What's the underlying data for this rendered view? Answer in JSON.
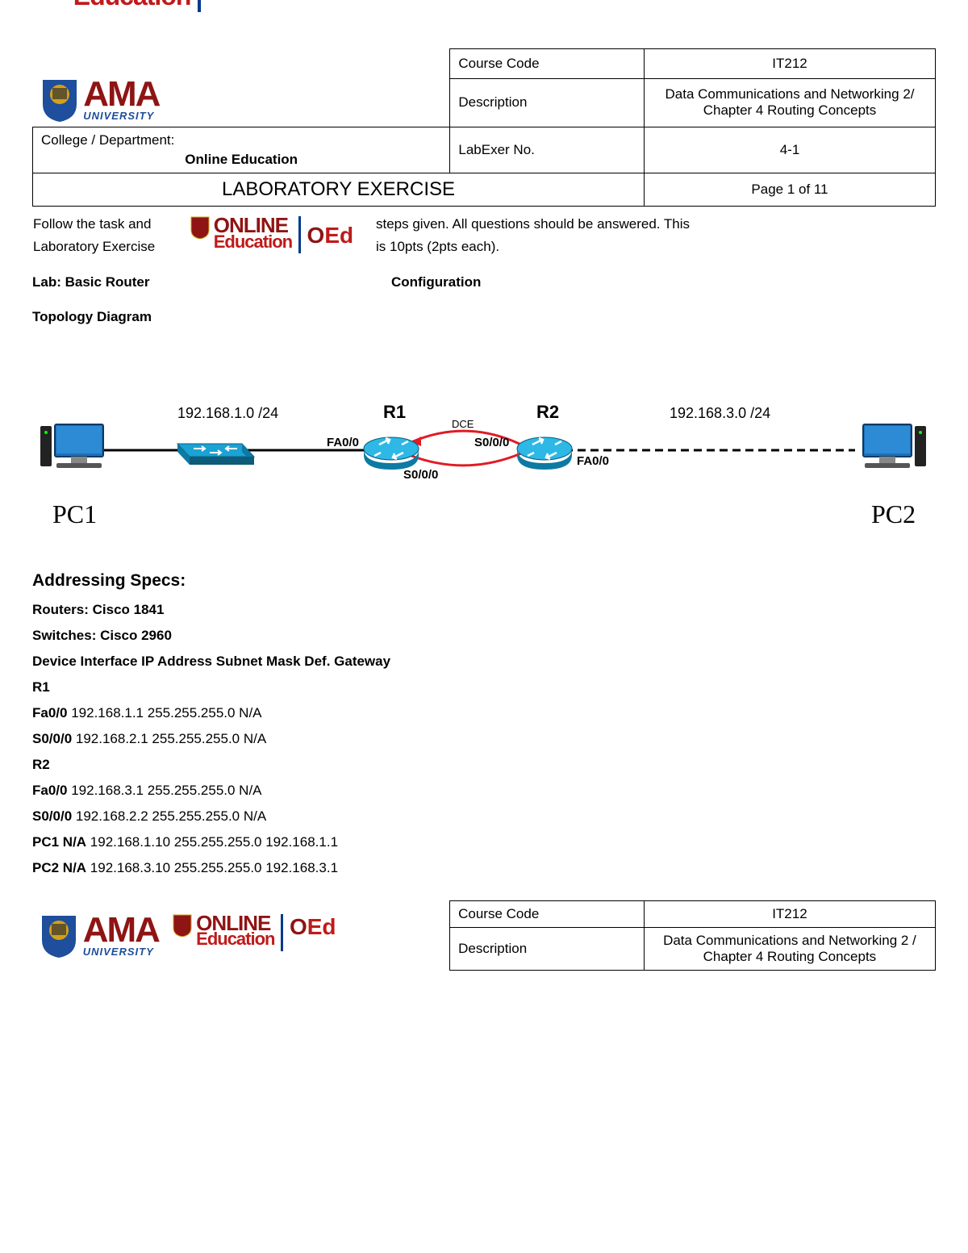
{
  "header": {
    "course_code_label": "Course Code",
    "course_code": "IT212",
    "description_label": "Description",
    "description_line1": "Data Communications and Networking 2/",
    "description_line2": "Chapter 4 Routing Concepts",
    "college_label": "College / Department:",
    "college_value": "Online Education",
    "labexer_label": "LabExer No.",
    "labexer_value": "4-1",
    "title": "LABORATORY EXERCISE",
    "page_info": "Page 1 of 11"
  },
  "intro": {
    "line1a": "Follow the task and",
    "line1b": "steps given. All questions should be answered. This",
    "line2a": "Laboratory Exercise",
    "line2b": "is 10pts (2pts each).",
    "lab_label": "Lab: Basic Router",
    "config_label": "Configuration",
    "topo_label": "Topology Diagram"
  },
  "topology": {
    "pc1": "PC1",
    "pc2": "PC2",
    "net1": "192.168.1.0 /24",
    "net2": "192.168.3.0 /24",
    "r1": "R1",
    "r2": "R2",
    "fa00_left": "FA0/0",
    "fa00_right": "FA0/0",
    "s000_left": "S0/0/0",
    "s000_right": "S0/0/0",
    "dce": "DCE",
    "colors": {
      "device_blue": "#1aa3d4",
      "device_dark": "#0d5c7a",
      "screen_blue": "#1e6fb8",
      "serial_red": "#e01b24",
      "line_black": "#000000"
    }
  },
  "specs": {
    "heading": "Addressing Specs:",
    "routers": "Routers: Cisco 1841",
    "switches": "Switches: Cisco 2960",
    "table_header": "Device Interface IP Address Subnet Mask Def. Gateway",
    "rows": [
      {
        "bold": "R1",
        "rest": ""
      },
      {
        "bold": "Fa0/0",
        "rest": " 192.168.1.1 255.255.255.0 N/A"
      },
      {
        "bold": "S0/0/0",
        "rest": " 192.168.2.1 255.255.255.0 N/A"
      },
      {
        "bold": "R2",
        "rest": ""
      },
      {
        "bold": "Fa0/0",
        "rest": " 192.168.3.1 255.255.255.0 N/A"
      },
      {
        "bold": "S0/0/0",
        "rest": " 192.168.2.2 255.255.255.0 N/A"
      },
      {
        "bold": "PC1 N/A",
        "rest": " 192.168.1.10 255.255.255.0 192.168.1.1"
      },
      {
        "bold": "PC2 N/A",
        "rest": " 192.168.3.10 255.255.255.0 192.168.3.1"
      }
    ]
  },
  "footer": {
    "course_code_label": "Course Code",
    "course_code": "IT212",
    "description_label": "Description",
    "description_line1": "Data Communications and Networking 2 /",
    "description_line2": "Chapter 4 Routing Concepts"
  }
}
